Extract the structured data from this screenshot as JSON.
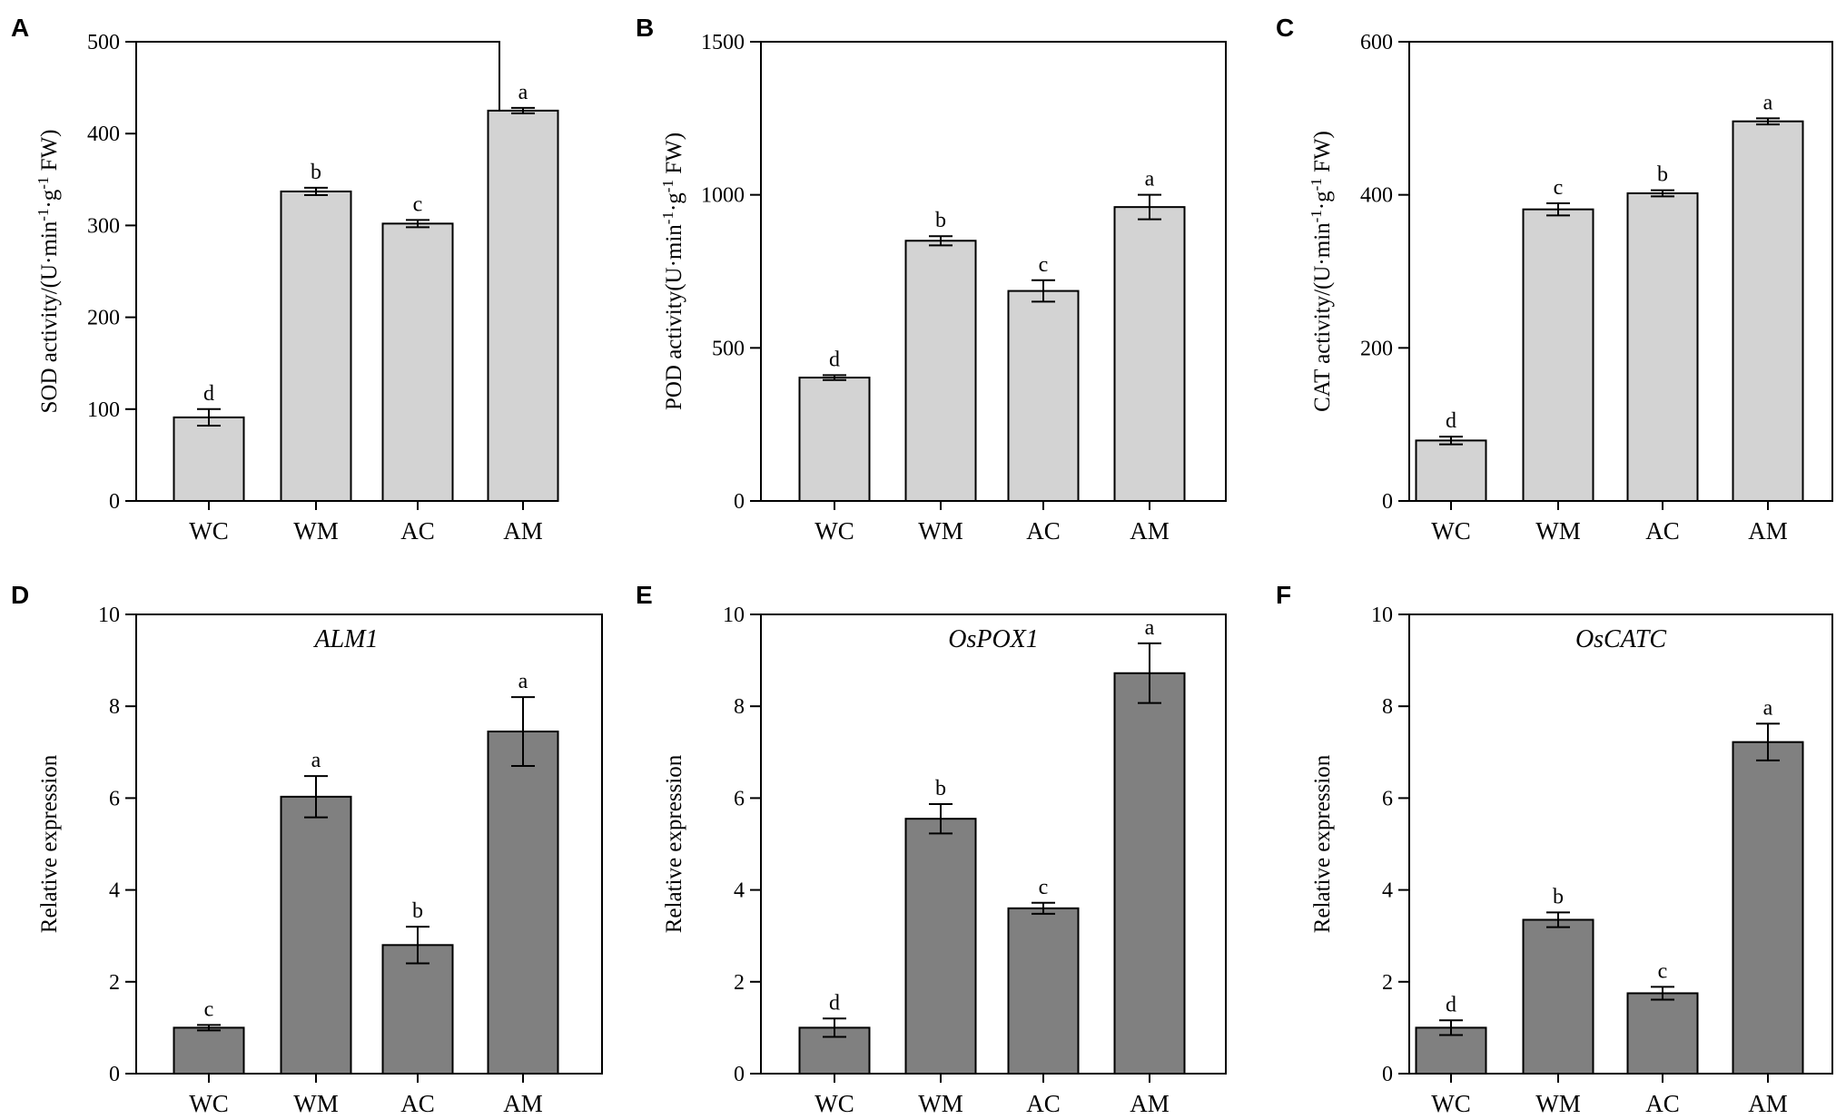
{
  "colors": {
    "activity_bar": "#d3d3d3",
    "expression_bar": "#808080",
    "axis": "#000000"
  },
  "chart_data": [
    {
      "panel": "A",
      "type": "bar",
      "frame": "box",
      "ylabel": "SOD activity/(U·min",
      "ylabel_sup1": "-1",
      "ylabel_mid": "·g",
      "ylabel_sup2": "-1",
      "ylabel_end": " FW)",
      "title": "",
      "categories": [
        "WC",
        "WM",
        "AC",
        "AM"
      ],
      "values": [
        91,
        337,
        302,
        425
      ],
      "errors": [
        9,
        4,
        4,
        3
      ],
      "significance": [
        "d",
        "b",
        "c",
        "a"
      ],
      "ylim": [
        0,
        500
      ],
      "yticks": [
        0,
        100,
        200,
        300,
        400,
        500
      ],
      "bar_color": "activity_bar"
    },
    {
      "panel": "B",
      "type": "bar",
      "frame": "box",
      "ylabel": "POD activity(U·min",
      "ylabel_sup1": "-1",
      "ylabel_mid": "·g",
      "ylabel_sup2": "-1",
      "ylabel_end": " FW)",
      "title": "",
      "categories": [
        "WC",
        "WM",
        "AC",
        "AM"
      ],
      "values": [
        403,
        850,
        686,
        960
      ],
      "errors": [
        8,
        15,
        35,
        40
      ],
      "significance": [
        "d",
        "b",
        "c",
        "a"
      ],
      "ylim": [
        0,
        1500
      ],
      "yticks": [
        0,
        500,
        1000,
        1500
      ],
      "bar_color": "activity_bar"
    },
    {
      "panel": "C",
      "type": "bar",
      "frame": "box",
      "ylabel": "CAT activity/(U·min",
      "ylabel_sup1": "-1",
      "ylabel_mid": "·g",
      "ylabel_sup2": "-1",
      "ylabel_end": " FW)",
      "title": "",
      "categories": [
        "WC",
        "WM",
        "AC",
        "AM"
      ],
      "values": [
        79,
        381,
        402,
        496
      ],
      "errors": [
        5,
        8,
        4,
        4
      ],
      "significance": [
        "d",
        "c",
        "b",
        "a"
      ],
      "ylim": [
        0,
        600
      ],
      "yticks": [
        0,
        200,
        400,
        600
      ],
      "bar_color": "activity_bar"
    },
    {
      "panel": "D",
      "type": "bar",
      "frame": "box",
      "ylabel": "Relative expression",
      "title": "ALM1",
      "categories": [
        "WC",
        "WM",
        "AC",
        "AM"
      ],
      "values": [
        1.0,
        6.03,
        2.8,
        7.45
      ],
      "errors": [
        0.06,
        0.45,
        0.4,
        0.75
      ],
      "significance": [
        "c",
        "a",
        "b",
        "a"
      ],
      "ylim": [
        0,
        10
      ],
      "yticks": [
        0,
        2,
        4,
        6,
        8,
        10
      ],
      "bar_color": "expression_bar"
    },
    {
      "panel": "E",
      "type": "bar",
      "frame": "box",
      "ylabel": "Relative expression",
      "title": "OsPOX1",
      "categories": [
        "WC",
        "WM",
        "AC",
        "AM"
      ],
      "values": [
        1.0,
        5.55,
        3.6,
        8.72
      ],
      "errors": [
        0.2,
        0.32,
        0.12,
        0.65
      ],
      "significance": [
        "d",
        "b",
        "c",
        "a"
      ],
      "ylim": [
        0,
        10
      ],
      "yticks": [
        0,
        2,
        4,
        6,
        8,
        10
      ],
      "bar_color": "expression_bar"
    },
    {
      "panel": "F",
      "type": "bar",
      "frame": "box",
      "ylabel": "Relative expression",
      "title": "OsCATC",
      "categories": [
        "WC",
        "WM",
        "AC",
        "AM"
      ],
      "values": [
        1.0,
        3.35,
        1.75,
        7.22
      ],
      "errors": [
        0.16,
        0.16,
        0.14,
        0.4
      ],
      "significance": [
        "d",
        "b",
        "c",
        "a"
      ],
      "ylim": [
        0,
        10
      ],
      "yticks": [
        0,
        2,
        4,
        6,
        8,
        10
      ],
      "bar_color": "expression_bar"
    }
  ]
}
